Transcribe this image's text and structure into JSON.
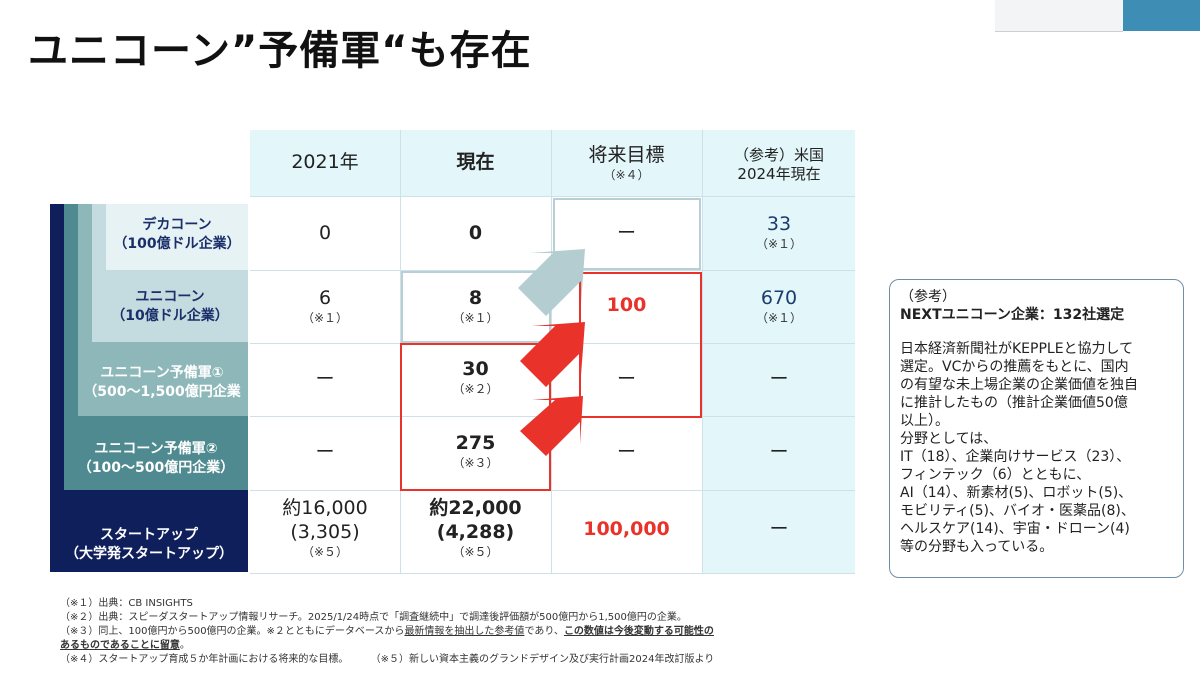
{
  "title": "ユニコーン”予備軍“も存在",
  "table": {
    "headers": {
      "col2021": "2021年",
      "colNow": "現在",
      "colTarget": "将来目標",
      "colTargetNote": "（※４）",
      "colUS1": "（参考）米国",
      "colUS2": "2024年現在"
    },
    "rows": [
      {
        "label1": "デカコーン",
        "label2": "（100億ドル企業）",
        "y2021": "0",
        "y2021_note": "",
        "now": "0",
        "now_note": "",
        "target": "ー",
        "us": "33",
        "us_note": "（※１）"
      },
      {
        "label1": "ユニコーン",
        "label2": "（10億ドル企業）",
        "y2021": "6",
        "y2021_note": "（※１）",
        "now": "8",
        "now_note": "（※１）",
        "target": "100",
        "us": "670",
        "us_note": "（※１）"
      },
      {
        "label1": "ユニコーン予備軍①",
        "label2": "（500～1,500億円企業",
        "y2021": "ー",
        "y2021_note": "",
        "now": "30",
        "now_note": "（※２）",
        "target": "ー",
        "us": "ー",
        "us_note": ""
      },
      {
        "label1": "ユニコーン予備軍②",
        "label2": "（100～500億円企業）",
        "y2021": "ー",
        "y2021_note": "",
        "now": "275",
        "now_note": "（※３）",
        "target": "ー",
        "us": "ー",
        "us_note": ""
      },
      {
        "label1": "スタートアップ",
        "label2": "（大学発スタートアップ）",
        "y2021": "約16,000",
        "y2021_b": "(3,305)",
        "y2021_note": "（※５）",
        "now": "約22,000",
        "now_b": "(4,288)",
        "now_note": "（※５）",
        "target": "100,000",
        "us": "ー",
        "us_note": ""
      }
    ]
  },
  "sidebox": {
    "ref": "（参考）",
    "heading": "NEXTユニコーン企業：132社選定",
    "lines": [
      "日本経済新聞社がKEPPLEと協力して",
      "選定。VCからの推薦をもとに、国内",
      "の有望な未上場企業の企業価値を独自",
      "に推計したもの（推計企業価値50億",
      "以上）。",
      "分野としては、",
      "IT（18）、企業向けサービス（23）、",
      "フィンテック（6）とともに、",
      "AI（14）、新素材(5)、ロボット(5)、",
      "モビリティ(5)、バイオ・医薬品(8)、",
      "ヘルスケア(14)、宇宙・ドローン(4)",
      "等の分野も入っている。"
    ]
  },
  "footnotes": {
    "n1": "（※１）出典：CB INSIGHTS",
    "n2": "（※２）出典：スピーダスタートアップ情報リサーチ。2025/1/24時点で「調査継続中」で調達後評価額が500億円から1,500億円の企業。",
    "n3a": "（※３）同上、100億円から500億円の企業。※２とともにデータベースから",
    "n3b": "最新情報を抽出した参考値",
    "n3c": "であり、",
    "n3d": "この数値は今後変動する可能性の",
    "n3e": "あるものであることに留意",
    "n3f": "。",
    "n4": "（※４）スタートアップ育成５か年計画における将来的な目標。",
    "n5": "（※５）新しい資本主義のグランドデザイン及び実行計画2024年改訂版より"
  },
  "colors": {
    "navy": "#0f1f5c",
    "red": "#e8322a",
    "header": "#e3f6fa",
    "teal": "#4e8a8f"
  }
}
